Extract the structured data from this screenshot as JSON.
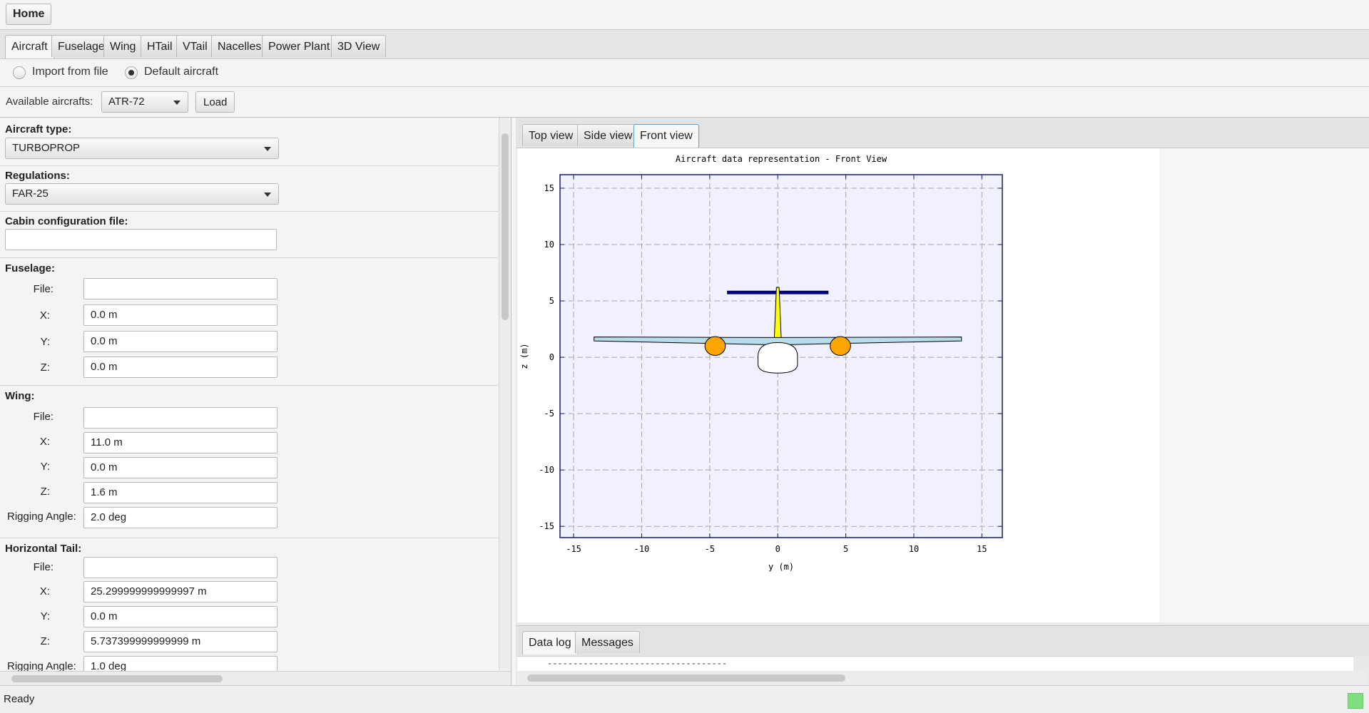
{
  "toolbar": {
    "home_label": "Home"
  },
  "tabs": [
    "Aircraft",
    "Fuselage",
    "Wing",
    "HTail",
    "VTail",
    "Nacelles",
    "Power Plant",
    "3D View"
  ],
  "import": {
    "option1": "Import from file",
    "option2": "Default aircraft",
    "selected": "Default aircraft"
  },
  "available": {
    "label": "Available aircrafts:",
    "value": "ATR-72",
    "load_label": "Load"
  },
  "form": {
    "aircraft_type": {
      "label": "Aircraft type:",
      "value": "TURBOPROP"
    },
    "regulations": {
      "label": "Regulations:",
      "value": "FAR-25"
    },
    "cabin": {
      "label": "Cabin configuration file:",
      "value": ""
    },
    "fuselage": {
      "title": "Fuselage:",
      "file_label": "File:",
      "file": "",
      "x_label": "X:",
      "x": "0.0 m",
      "y_label": "Y:",
      "y": "0.0 m",
      "z_label": "Z:",
      "z": "0.0 m"
    },
    "wing": {
      "title": "Wing:",
      "file_label": "File:",
      "file": "",
      "x_label": "X:",
      "x": "11.0 m",
      "y_label": "Y:",
      "y": "0.0 m",
      "z_label": "Z:",
      "z": "1.6 m",
      "rig_label": "Rigging Angle:",
      "rig": "2.0 deg"
    },
    "htail": {
      "title": "Horizontal Tail:",
      "file_label": "File:",
      "file": "",
      "x_label": "X:",
      "x": "25.299999999999997 m",
      "y_label": "Y:",
      "y": "0.0 m",
      "z_label": "Z:",
      "z": "5.737399999999999 m",
      "rig_label": "Rigging Angle:",
      "rig": "1.0 deg"
    }
  },
  "view_tabs": [
    "Top view",
    "Side view",
    "Front view"
  ],
  "active_view": "Front view",
  "bottom_tabs": [
    "Data log",
    "Messages"
  ],
  "log_line": "-----------------------------------",
  "status": {
    "text": "Ready",
    "indicator_color": "#7fe07f"
  },
  "chart_data": {
    "type": "scatter",
    "title": "Aircraft data representation - Front View",
    "xlabel": "y (m)",
    "ylabel": "z (m)",
    "xlim": [
      -16,
      16.5
    ],
    "ylim": [
      -16,
      16.2
    ],
    "xticks": [
      -15,
      -10,
      -5,
      0,
      5,
      10,
      15
    ],
    "yticks": [
      15,
      10,
      5,
      0,
      -5,
      -10,
      -15
    ],
    "grid": true,
    "shapes": {
      "wing": {
        "span_tip": 13.5,
        "z_root_top": 1.75,
        "z_root_bot": 1.1,
        "z_tip_top": 1.8,
        "z_tip_bot": 1.45,
        "color": "#b8dcec"
      },
      "htail": {
        "span_tip": 3.7,
        "z": 5.75,
        "thickness": 0.25,
        "color": "#00008b"
      },
      "vtail": {
        "z_bottom": 1.75,
        "z_top": 6.2,
        "half_width_bottom": 0.25,
        "half_width_top": 0.1,
        "color": "#ffff00"
      },
      "fuselage": {
        "half_width": 1.45,
        "z_top": 1.3,
        "z_bottom": -1.4,
        "color": "#ffffff"
      },
      "nacelles": [
        {
          "y": -4.6,
          "z": 1.0,
          "r": 0.75
        },
        {
          "y": 4.6,
          "z": 1.0,
          "r": 0.75
        }
      ],
      "nacelle_color": "#ffa500"
    },
    "plot_bg": "#f0f0ff"
  }
}
